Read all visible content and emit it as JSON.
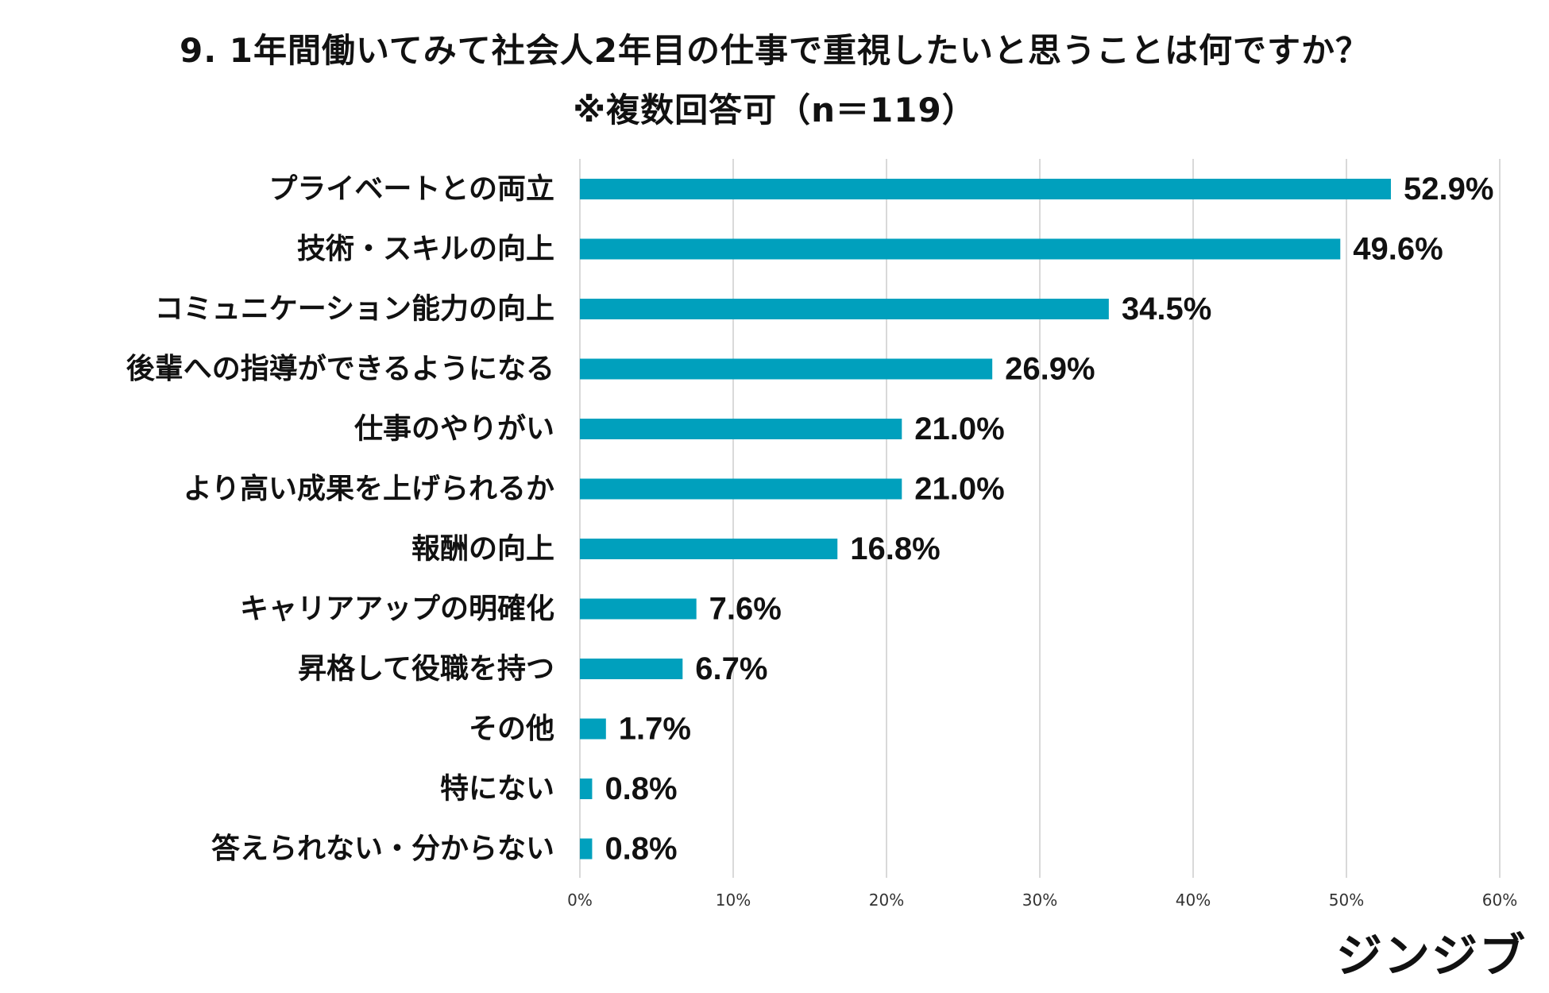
{
  "chart_data": {
    "type": "bar",
    "orientation": "horizontal",
    "title": "9. 1年間働いてみて社会人2年目の仕事で重視したいと思うことは何ですか？",
    "subtitle": "※複数回答可（n＝119）",
    "categories": [
      "プライベートとの両立",
      "技術・スキルの向上",
      "コミュニケーション能力の向上",
      "後輩への指導ができるようになる",
      "仕事のやりがい",
      "より高い成果を上げられるか",
      "報酬の向上",
      "キャリアアップの明確化",
      "昇格して役職を持つ",
      "その他",
      "特にない",
      "答えられない・分からない"
    ],
    "values": [
      52.9,
      49.6,
      34.5,
      26.9,
      21.0,
      21.0,
      16.8,
      7.6,
      6.7,
      1.7,
      0.8,
      0.8
    ],
    "data_labels": [
      "52.9%",
      "49.6%",
      "34.5%",
      "26.9%",
      "21.0%",
      "21.0%",
      "16.8%",
      "7.6%",
      "6.7%",
      "1.7%",
      "0.8%",
      "0.8%"
    ],
    "xlim": [
      0,
      60
    ],
    "xticks": [
      0,
      10,
      20,
      30,
      40,
      50,
      60
    ],
    "xtick_labels": [
      "0%",
      "10%",
      "20%",
      "30%",
      "40%",
      "50%",
      "60%"
    ],
    "xlabel": "",
    "ylabel": "",
    "grid": true,
    "bar_color": "#00A0BD",
    "grid_color": "#D9D9D9"
  },
  "logo_text": "ジンジブ"
}
